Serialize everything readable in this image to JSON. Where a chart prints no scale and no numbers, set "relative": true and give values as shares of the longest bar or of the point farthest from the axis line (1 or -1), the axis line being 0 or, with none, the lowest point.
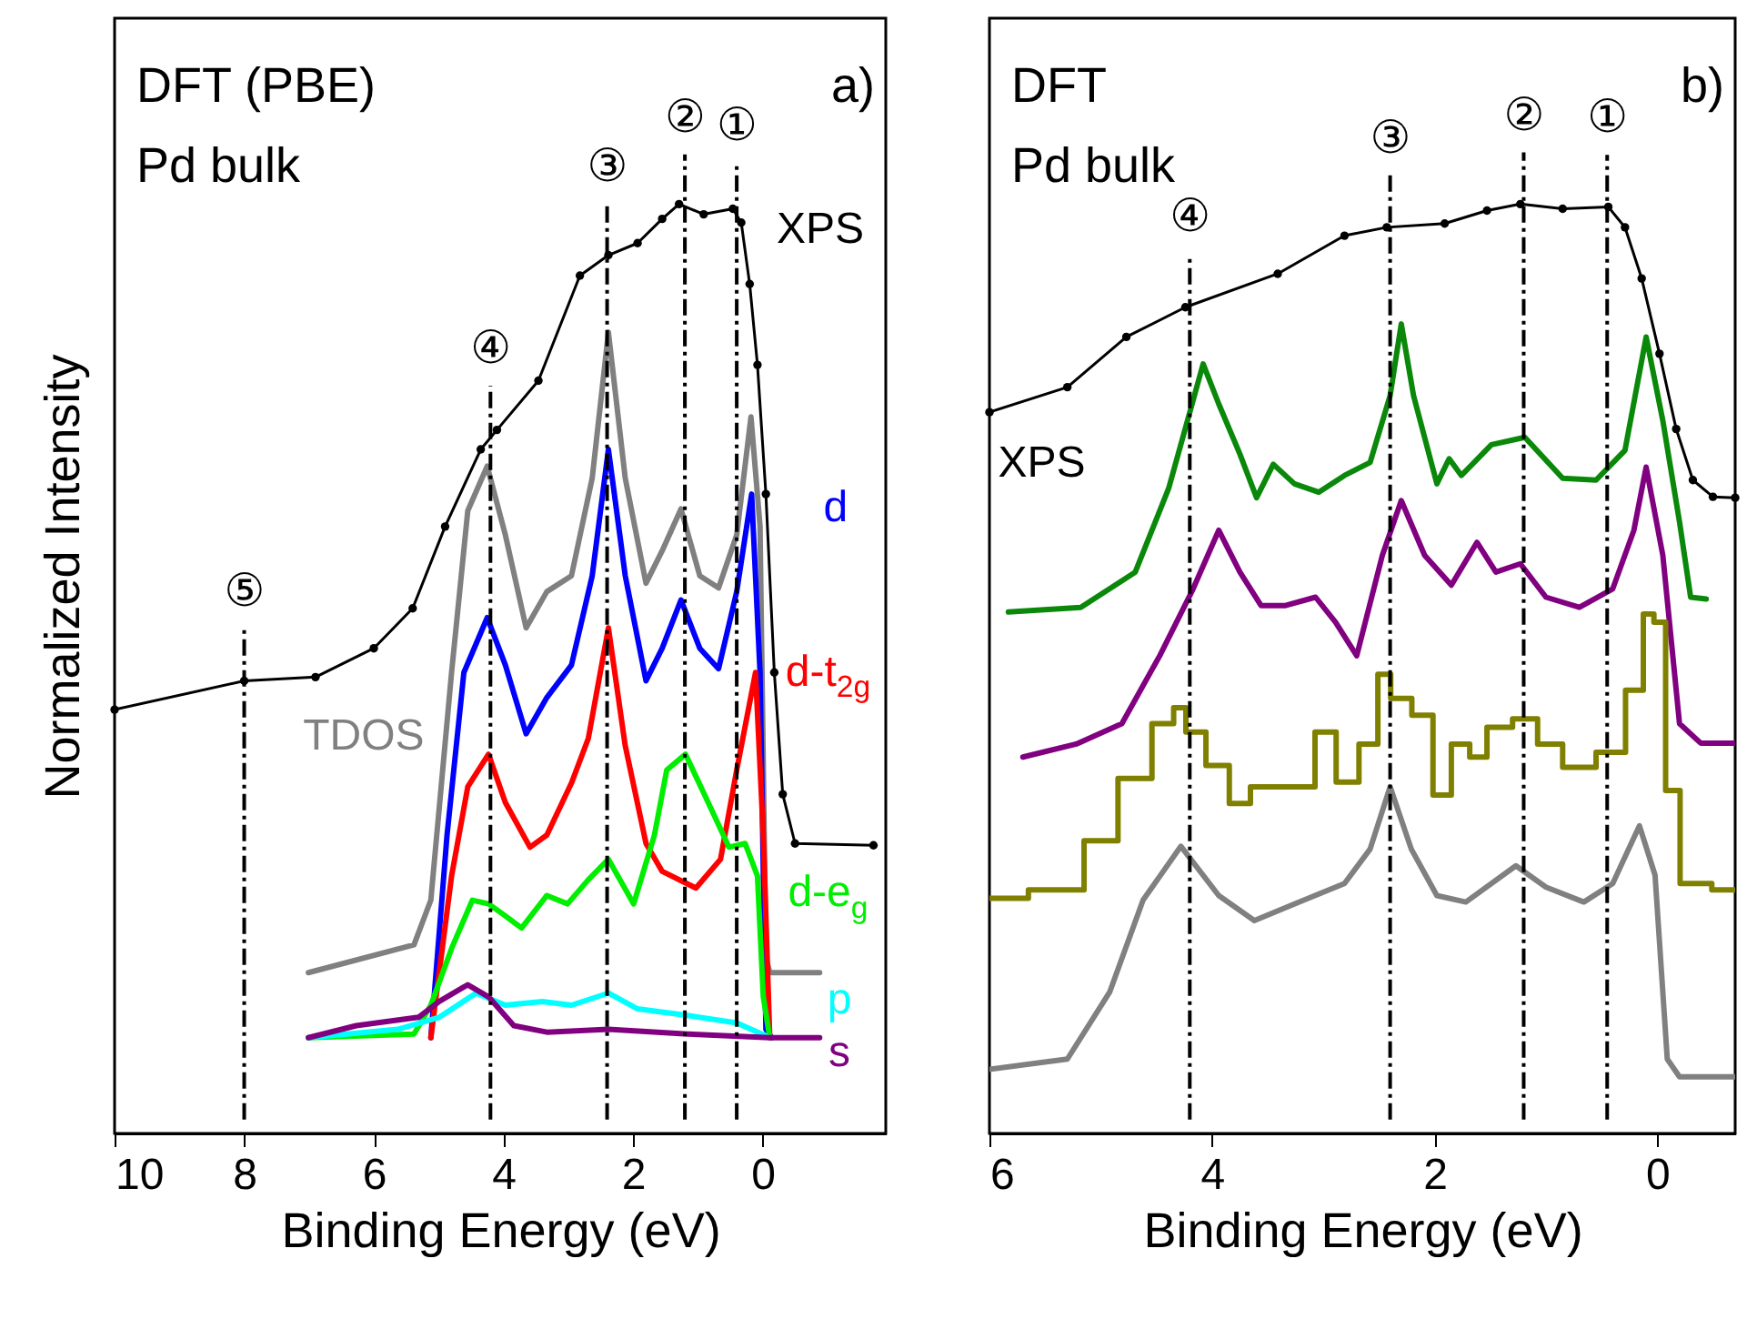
{
  "chart_data": [
    {
      "type": "line",
      "xlabel": "Binding Energy (eV)",
      "ylabel": "Normalized Intensity",
      "relative": true,
      "xlim": [
        10,
        -1.9
      ],
      "xticks": [
        10,
        8,
        6,
        4,
        2,
        0
      ],
      "annotations": [
        "DFT (PBE)",
        "Pd bulk",
        "a)"
      ],
      "ref_lines": [
        {
          "axis": "x",
          "value": 8.0,
          "label": "⑤",
          "line_style": "dashed"
        },
        {
          "axis": "x",
          "value": 4.2,
          "label": "④",
          "line_style": "dashed"
        },
        {
          "axis": "x",
          "value": 2.4,
          "label": "③",
          "line_style": "dashed"
        },
        {
          "axis": "x",
          "value": 1.2,
          "label": "②",
          "line_style": "dashed"
        },
        {
          "axis": "x",
          "value": 0.4,
          "label": "①",
          "line_style": "dashed"
        }
      ],
      "series": [
        {
          "name": "XPS",
          "color": "#000000",
          "marker": "circle",
          "x": [
            10,
            8,
            6.9,
            6.0,
            5.4,
            4.9,
            4.35,
            4.1,
            3.46,
            2.82,
            2.38,
            1.93,
            1.55,
            1.29,
            0.91,
            0.46,
            0.33,
            0.2,
            0.08,
            -0.05,
            -0.18,
            -0.31,
            -0.5,
            -1.71
          ],
          "values": [
            0.456,
            0.487,
            0.491,
            0.522,
            0.565,
            0.653,
            0.736,
            0.757,
            0.81,
            0.923,
            0.945,
            0.958,
            0.984,
            1.0,
            0.989,
            0.995,
            0.98,
            0.914,
            0.827,
            0.688,
            0.496,
            0.365,
            0.312,
            0.31
          ]
        },
        {
          "name": "TDOS",
          "color": "#808080",
          "x": [
            7.01,
            5.38,
            5.12,
            4.8,
            4.55,
            4.25,
            3.97,
            3.65,
            3.33,
            2.95,
            2.63,
            2.38,
            2.12,
            1.8,
            1.55,
            1.26,
            0.97,
            0.68,
            0.4,
            0.18,
            0.04,
            -0.05,
            -0.11,
            -0.88
          ],
          "values": [
            0.173,
            0.203,
            0.251,
            0.496,
            0.67,
            0.718,
            0.644,
            0.544,
            0.583,
            0.6,
            0.705,
            0.862,
            0.705,
            0.592,
            0.627,
            0.672,
            0.6,
            0.587,
            0.644,
            0.771,
            0.653,
            0.19,
            0.173,
            0.173
          ]
        },
        {
          "name": "d",
          "color": "#0000ff",
          "x": [
            5.12,
            4.87,
            4.61,
            4.25,
            3.97,
            3.65,
            3.33,
            2.95,
            2.63,
            2.38,
            2.12,
            1.8,
            1.55,
            1.26,
            0.97,
            0.68,
            0.4,
            0.17,
            0.04,
            -0.05,
            -0.14
          ],
          "values": [
            0.103,
            0.321,
            0.496,
            0.555,
            0.504,
            0.43,
            0.469,
            0.504,
            0.6,
            0.736,
            0.6,
            0.487,
            0.522,
            0.574,
            0.522,
            0.5,
            0.583,
            0.688,
            0.496,
            0.112,
            0.103
          ]
        },
        {
          "name": "d-t$_{2g}$",
          "color": "#ff0000",
          "x": [
            5.12,
            4.8,
            4.55,
            4.23,
            3.97,
            3.59,
            3.33,
            2.95,
            2.69,
            2.38,
            2.12,
            1.8,
            1.55,
            1.03,
            0.65,
            0.4,
            0.11,
            -0.01,
            -0.11
          ],
          "values": [
            0.103,
            0.277,
            0.373,
            0.408,
            0.356,
            0.308,
            0.321,
            0.377,
            0.425,
            0.544,
            0.417,
            0.312,
            0.282,
            0.264,
            0.295,
            0.391,
            0.496,
            0.321,
            0.103
          ]
        },
        {
          "name": "d-e$_{g}$",
          "color": "#00ee00",
          "x": [
            7.01,
            5.38,
            5.12,
            4.8,
            4.48,
            4.23,
            3.97,
            3.72,
            3.33,
            3.01,
            2.69,
            2.38,
            1.99,
            1.67,
            1.48,
            1.19,
            0.84,
            0.52,
            0.27,
            0.08,
            -0.01,
            -0.11
          ],
          "values": [
            0.103,
            0.107,
            0.138,
            0.199,
            0.251,
            0.247,
            0.234,
            0.221,
            0.256,
            0.247,
            0.273,
            0.295,
            0.247,
            0.321,
            0.391,
            0.408,
            0.356,
            0.308,
            0.312,
            0.277,
            0.147,
            0.103
          ]
        },
        {
          "name": "p",
          "color": "#00ffff",
          "x": [
            7.01,
            5.63,
            4.99,
            4.42,
            3.97,
            3.4,
            2.95,
            2.38,
            1.93,
            1.16,
            0.4,
            -0.05
          ],
          "values": [
            0.103,
            0.112,
            0.125,
            0.151,
            0.138,
            0.142,
            0.138,
            0.151,
            0.134,
            0.127,
            0.119,
            0.105
          ]
        },
        {
          "name": "s",
          "color": "#800080",
          "x": [
            7.01,
            6.27,
            5.31,
            4.99,
            4.55,
            4.23,
            3.84,
            3.33,
            2.38,
            1.16,
            -0.11,
            -0.88
          ],
          "values": [
            0.103,
            0.116,
            0.125,
            0.142,
            0.16,
            0.147,
            0.116,
            0.109,
            0.112,
            0.107,
            0.103,
            0.103
          ]
        }
      ]
    },
    {
      "type": "line",
      "xlabel": "Binding Energy (eV)",
      "relative": true,
      "xlim": [
        6,
        -0.7
      ],
      "xticks": [
        6,
        4,
        2,
        0
      ],
      "annotations": [
        "DFT",
        "Pd bulk",
        "b)"
      ],
      "ref_lines": [
        {
          "axis": "x",
          "value": 4.2,
          "label": "④",
          "line_style": "dashed"
        },
        {
          "axis": "x",
          "value": 2.4,
          "label": "③",
          "line_style": "dashed"
        },
        {
          "axis": "x",
          "value": 1.2,
          "label": "②",
          "line_style": "dashed"
        },
        {
          "axis": "x",
          "value": 0.45,
          "label": "①",
          "line_style": "dashed"
        }
      ],
      "series": [
        {
          "name": "XPS",
          "color": "#000000",
          "marker": "circle",
          "x": [
            6,
            5.3,
            4.77,
            4.24,
            3.41,
            2.81,
            2.43,
            1.91,
            1.53,
            1.23,
            0.85,
            0.44,
            0.29,
            0.14,
            -0.02,
            -0.17,
            -0.32,
            -0.5,
            -0.7
          ],
          "values": [
            0.776,
            0.803,
            0.857,
            0.889,
            0.925,
            0.966,
            0.975,
            0.979,
            0.993,
            1.0,
            0.995,
            0.997,
            0.975,
            0.92,
            0.839,
            0.758,
            0.703,
            0.685,
            0.684
          ]
        },
        {
          "color": "#0a880a",
          "x": [
            5.83,
            5.18,
            4.69,
            4.39,
            4.2,
            4.08,
            3.94,
            3.75,
            3.6,
            3.45,
            3.26,
            3.04,
            2.81,
            2.58,
            2.4,
            2.3,
            2.19,
            1.98,
            1.87,
            1.76,
            1.49,
            1.19,
            0.85,
            0.55,
            0.29,
            0.1,
            -0.05,
            -0.2,
            -0.3,
            -0.44
          ],
          "values": [
            0.561,
            0.566,
            0.604,
            0.694,
            0.776,
            0.828,
            0.785,
            0.731,
            0.684,
            0.72,
            0.699,
            0.69,
            0.708,
            0.722,
            0.794,
            0.871,
            0.794,
            0.699,
            0.726,
            0.708,
            0.741,
            0.749,
            0.705,
            0.703,
            0.735,
            0.857,
            0.767,
            0.658,
            0.577,
            0.575
          ]
        },
        {
          "color": "#800080",
          "x": [
            5.7,
            5.22,
            4.81,
            4.47,
            4.17,
            3.94,
            3.75,
            3.56,
            3.34,
            3.07,
            2.89,
            2.7,
            2.47,
            2.3,
            2.09,
            1.85,
            1.62,
            1.45,
            1.23,
            1.0,
            0.7,
            0.4,
            0.21,
            0.1,
            -0.05,
            -0.2,
            -0.39,
            -0.7
          ],
          "values": [
            0.405,
            0.419,
            0.441,
            0.514,
            0.586,
            0.649,
            0.604,
            0.568,
            0.568,
            0.577,
            0.55,
            0.514,
            0.622,
            0.681,
            0.622,
            0.59,
            0.636,
            0.604,
            0.613,
            0.577,
            0.566,
            0.586,
            0.649,
            0.717,
            0.622,
            0.441,
            0.42,
            0.42
          ]
        },
        {
          "type": "step",
          "color": "#808000",
          "x": [
            6,
            5.3,
            5.0,
            4.69,
            4.39,
            4.3,
            4.17,
            3.94,
            3.75,
            3.56,
            3.19,
            2.96,
            2.81,
            2.55,
            2.47,
            2.32,
            2.09,
            1.94,
            1.76,
            1.61,
            1.45,
            1.15,
            1.0,
            0.7,
            0.4,
            0.17,
            0.08,
            -0.02,
            -0.13,
            -0.28,
            -0.7
          ],
          "values": [
            0.253,
            0.262,
            0.315,
            0.382,
            0.441,
            0.458,
            0.432,
            0.396,
            0.355,
            0.373,
            0.373,
            0.432,
            0.378,
            0.419,
            0.494,
            0.468,
            0.45,
            0.364,
            0.419,
            0.405,
            0.437,
            0.446,
            0.419,
            0.394,
            0.41,
            0.477,
            0.559,
            0.55,
            0.369,
            0.269,
            0.262
          ]
        },
        {
          "color": "#808080",
          "x": [
            6,
            5.3,
            4.92,
            4.62,
            4.28,
            3.94,
            3.62,
            3.26,
            2.81,
            2.58,
            2.4,
            2.21,
            1.98,
            1.72,
            1.27,
            1.0,
            0.66,
            0.4,
            0.16,
            0.02,
            -0.09,
            -0.2,
            -0.7
          ],
          "values": [
            0.069,
            0.08,
            0.152,
            0.251,
            0.309,
            0.256,
            0.229,
            0.247,
            0.269,
            0.306,
            0.373,
            0.306,
            0.256,
            0.249,
            0.288,
            0.265,
            0.249,
            0.269,
            0.331,
            0.278,
            0.08,
            0.061,
            0.061
          ]
        }
      ]
    }
  ]
}
